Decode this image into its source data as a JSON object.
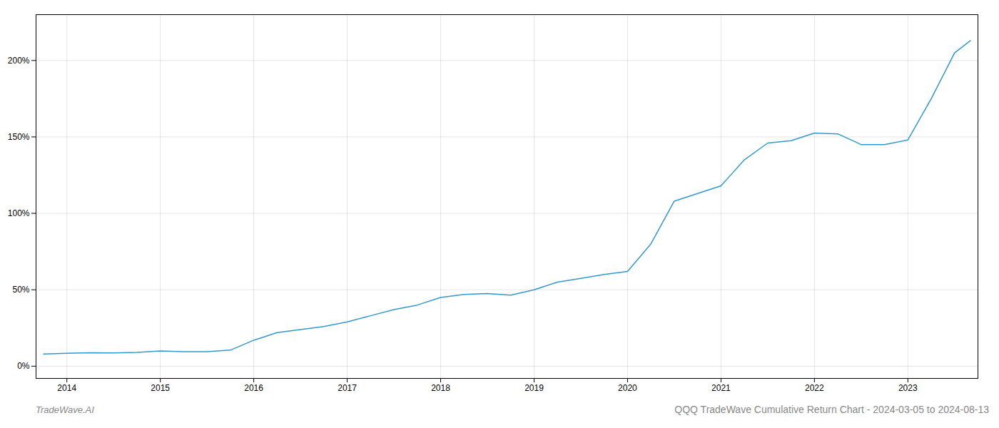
{
  "chart_data": {
    "type": "line",
    "title": "QQQ TradeWave Cumulative Return Chart - 2024-03-05 to 2024-08-13",
    "annotations": [
      "TradeWave.AI"
    ],
    "x": [
      2013.75,
      2014.0,
      2014.25,
      2014.5,
      2014.75,
      2015.0,
      2015.25,
      2015.5,
      2015.75,
      2016.0,
      2016.25,
      2016.5,
      2016.75,
      2017.0,
      2017.25,
      2017.5,
      2017.75,
      2018.0,
      2018.25,
      2018.5,
      2018.75,
      2019.0,
      2019.25,
      2019.5,
      2019.75,
      2020.0,
      2020.25,
      2020.5,
      2020.75,
      2021.0,
      2021.25,
      2021.5,
      2021.75,
      2022.0,
      2022.25,
      2022.5,
      2022.75,
      2023.0,
      2023.25,
      2023.5,
      2023.67
    ],
    "values": [
      8.0,
      8.5,
      8.8,
      8.7,
      9.0,
      10.0,
      9.5,
      9.5,
      10.5,
      17.0,
      22.0,
      24.0,
      26.0,
      29.0,
      33.0,
      37.0,
      40.0,
      45.0,
      47.0,
      47.5,
      46.5,
      50.0,
      55.0,
      57.5,
      60.0,
      62.0,
      80.0,
      108.0,
      113.0,
      118.0,
      135.0,
      146.0,
      147.5,
      152.5,
      152.0,
      145.0,
      145.0,
      148.0,
      175.0,
      205.0,
      213.0
    ],
    "color": "#3399cc",
    "xlim": [
      2013.67,
      2023.75
    ],
    "xticks": [
      2014,
      2015,
      2016,
      2017,
      2018,
      2019,
      2020,
      2021,
      2022,
      2023
    ],
    "ylim": [
      -8,
      230
    ],
    "yticks": [
      {
        "value": 0,
        "label": "0%"
      },
      {
        "value": 50,
        "label": "50%"
      },
      {
        "value": 100,
        "label": "100%"
      },
      {
        "value": 150,
        "label": "150%"
      },
      {
        "value": 200,
        "label": "200%"
      }
    ],
    "grid": true
  }
}
